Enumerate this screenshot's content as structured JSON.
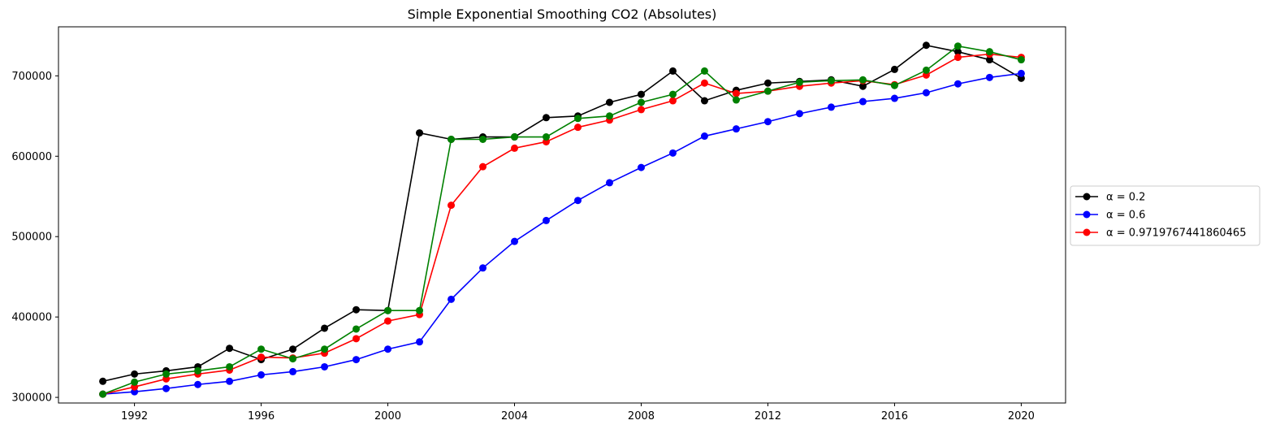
{
  "chart_data": {
    "type": "line",
    "title": "Simple Exponential Smoothing CO2 (Absolutes)",
    "xlabel": "",
    "ylabel": "",
    "x": [
      1991,
      1992,
      1993,
      1994,
      1995,
      1996,
      1997,
      1998,
      1999,
      2000,
      2001,
      2002,
      2003,
      2004,
      2005,
      2006,
      2007,
      2008,
      2009,
      2010,
      2011,
      2012,
      2013,
      2014,
      2015,
      2016,
      2017,
      2018,
      2019,
      2020
    ],
    "xlim": [
      1989.6,
      2021.4
    ],
    "ylim": [
      293000,
      761000
    ],
    "x_ticks": [
      1992,
      1996,
      2000,
      2004,
      2008,
      2012,
      2016,
      2020
    ],
    "y_ticks": [
      300000,
      400000,
      500000,
      600000,
      700000
    ],
    "grid": false,
    "legend_position": "center-right-outside",
    "series": [
      {
        "name": "α = 0.2",
        "color": "#000000",
        "values": [
          320000,
          329000,
          333000,
          338000,
          361000,
          347000,
          360000,
          386000,
          409000,
          408000,
          629000,
          621000,
          624000,
          624000,
          648000,
          650000,
          667000,
          677000,
          706000,
          669000,
          682000,
          691000,
          693000,
          695000,
          687000,
          708000,
          738000,
          730000,
          720000,
          697000
        ]
      },
      {
        "name": "α = 0.6",
        "color": "#0000ff",
        "values": [
          304000,
          307000,
          311000,
          316000,
          320000,
          328000,
          332000,
          338000,
          347000,
          360000,
          369000,
          422000,
          461000,
          494000,
          520000,
          545000,
          567000,
          586000,
          604000,
          625000,
          634000,
          643000,
          653000,
          661000,
          668000,
          672000,
          679000,
          690000,
          698000,
          703000
        ]
      },
      {
        "name": "α = 0.9719767441860465",
        "color": "#ff0000",
        "values": [
          304000,
          313000,
          323000,
          329000,
          334000,
          350000,
          349000,
          355000,
          373000,
          395000,
          403000,
          539000,
          587000,
          610000,
          618000,
          636000,
          645000,
          658000,
          669000,
          691000,
          678000,
          681000,
          687000,
          691000,
          694000,
          689000,
          701000,
          723000,
          727000,
          723000
        ]
      },
      {
        "name": "",
        "color": "#008000",
        "values": [
          304000,
          319000,
          329000,
          333000,
          338000,
          360000,
          348000,
          360000,
          385000,
          408000,
          408000,
          621000,
          621000,
          624000,
          624000,
          647000,
          650000,
          667000,
          677000,
          706000,
          670000,
          681000,
          692000,
          694000,
          695000,
          688000,
          707000,
          737000,
          730000,
          720000
        ]
      }
    ]
  }
}
